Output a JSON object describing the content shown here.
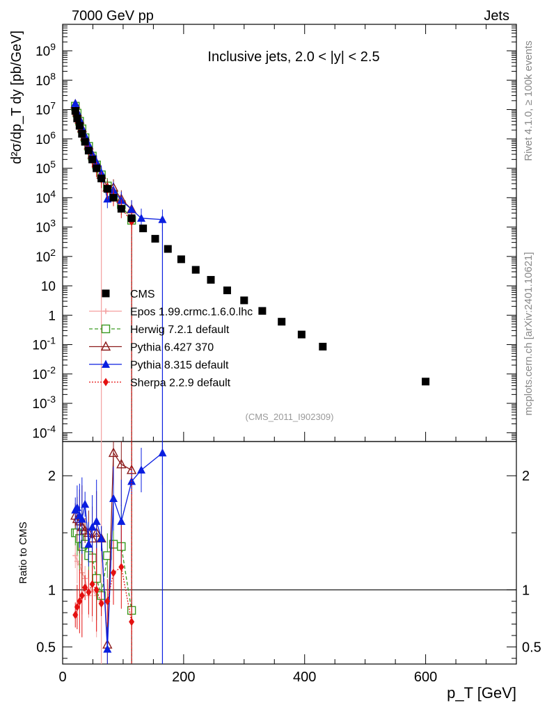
{
  "header": {
    "left": "7000 GeV pp",
    "right": "Jets"
  },
  "side": {
    "rivet": "Rivet 4.1.0, ≥ 100k events",
    "mcplots": "mcplots.cern.ch [arXiv:2401.10621]"
  },
  "chart_data": {
    "type": "scatter",
    "title": "Inclusive jets, 2.0 < |y| < 2.5",
    "analysis_label": "(CMS_2011_I902309)",
    "xlabel": "p_T [GeV]",
    "ylabel": "d²σ/dp_T dy [pb/GeV]",
    "ratio_ylabel": "Ratio to CMS",
    "xlim": [
      0,
      750
    ],
    "ylim_log10": [
      -4.3,
      9.9
    ],
    "ratio_ylim": [
      0.35,
      2.3
    ],
    "x_ticks": [
      "0",
      "200",
      "400",
      "600"
    ],
    "y_ticks": [
      "10^-4",
      "10^-3",
      "10^-2",
      "10^-1",
      "1",
      "10",
      "10^2",
      "10^3",
      "10^4",
      "10^5",
      "10^6",
      "10^7",
      "10^8",
      "10^9"
    ],
    "ratio_ticks": [
      "0.5",
      "1",
      "2"
    ],
    "legend": [
      {
        "name": "CMS",
        "color": "#000000",
        "marker": "square"
      },
      {
        "name": "Epos 1.99.crmc.1.6.0.lhc",
        "color": "#f4a0a0",
        "marker": "plus"
      },
      {
        "name": "Herwig 7.2.1 default",
        "color": "#3a9a20",
        "marker": "open-square"
      },
      {
        "name": "Pythia 6.427 370",
        "color": "#8b1a1a",
        "marker": "open-triangle"
      },
      {
        "name": "Pythia 8.315 default",
        "color": "#0a1ee0",
        "marker": "triangle"
      },
      {
        "name": "Sherpa 2.2.9 default",
        "color": "#e41010",
        "marker": "diamond"
      }
    ],
    "series": [
      {
        "name": "CMS",
        "x": [
          21,
          24,
          28,
          32,
          37,
          43,
          49,
          56,
          64,
          74,
          84,
          97,
          114,
          133,
          153,
          174,
          196,
          220,
          245,
          272,
          300,
          330,
          362,
          395,
          430,
          600
        ],
        "y": [
          9000000,
          5000000,
          2800000,
          1500000,
          800000,
          400000,
          200000,
          100000,
          45000,
          20000,
          10000,
          4200,
          2000,
          900,
          400,
          180,
          80,
          35,
          16,
          7,
          3.2,
          1.4,
          0.6,
          0.22,
          0.085,
          0.0055
        ]
      },
      {
        "name": "Epos 1.99.crmc.1.6.0.lhc",
        "x": [
          21,
          24,
          28,
          32,
          37,
          43,
          49,
          56,
          64
        ],
        "y": [
          11000000,
          6500000,
          3500000,
          1700000,
          900000,
          380000,
          200000,
          95000,
          40000
        ],
        "ratio": [
          1.3,
          1.25,
          1.22,
          1.15,
          1.1,
          0.95,
          1.0,
          0.95,
          0.9
        ]
      },
      {
        "name": "Herwig 7.2.1 default",
        "x": [
          21,
          24,
          28,
          32,
          37,
          43,
          49,
          56,
          64,
          74,
          84,
          97,
          114
        ],
        "y": [
          13000000,
          7500000,
          4000000,
          2200000,
          1100000,
          560000,
          260000,
          130000,
          60000,
          25000,
          13000,
          5800,
          1700
        ],
        "ratio": [
          1.5,
          1.5,
          1.45,
          1.38,
          1.4,
          1.3,
          1.28,
          1.1,
          0.95,
          1.3,
          1.4,
          1.38,
          0.82
        ]
      },
      {
        "name": "Pythia 6.427 370",
        "x": [
          21,
          24,
          28,
          32,
          37,
          43,
          49,
          56,
          64,
          74,
          84,
          97,
          114
        ],
        "y": [
          15000000,
          8000000,
          4500000,
          2300000,
          1200000,
          600000,
          290000,
          150000,
          60000,
          22000,
          22000,
          9000,
          4000
        ],
        "ratio": [
          1.65,
          1.62,
          1.6,
          1.55,
          1.52,
          1.5,
          1.45,
          1.5,
          1.45,
          0.52,
          2.2,
          2.1,
          2.05
        ]
      },
      {
        "name": "Pythia 8.315 default",
        "x": [
          21,
          24,
          28,
          32,
          37,
          43,
          49,
          56,
          64,
          74,
          84,
          97,
          114,
          130,
          165
        ],
        "y": [
          16000000,
          8500000,
          4700000,
          2400000,
          1300000,
          640000,
          300000,
          160000,
          70000,
          9000,
          18000,
          8000,
          4000,
          2000,
          1800
        ],
        "ratio": [
          1.7,
          1.72,
          1.65,
          1.62,
          1.75,
          1.4,
          1.55,
          1.6,
          1.45,
          0.48,
          1.8,
          1.6,
          1.95,
          2.05,
          2.2
        ]
      },
      {
        "name": "Sherpa 2.2.9 default",
        "x": [
          21,
          24,
          28,
          32,
          37,
          43,
          49,
          56,
          64,
          74,
          84,
          97,
          114
        ],
        "y": [
          7000000,
          4000000,
          2500000,
          1400000,
          800000,
          400000,
          190000,
          95000,
          42000,
          18000,
          11000,
          4500,
          1500
        ],
        "ratio": [
          0.78,
          0.85,
          0.9,
          0.95,
          1.02,
          0.98,
          1.05,
          1.0,
          0.88,
          0.9,
          1.15,
          1.2,
          0.72
        ]
      }
    ]
  }
}
